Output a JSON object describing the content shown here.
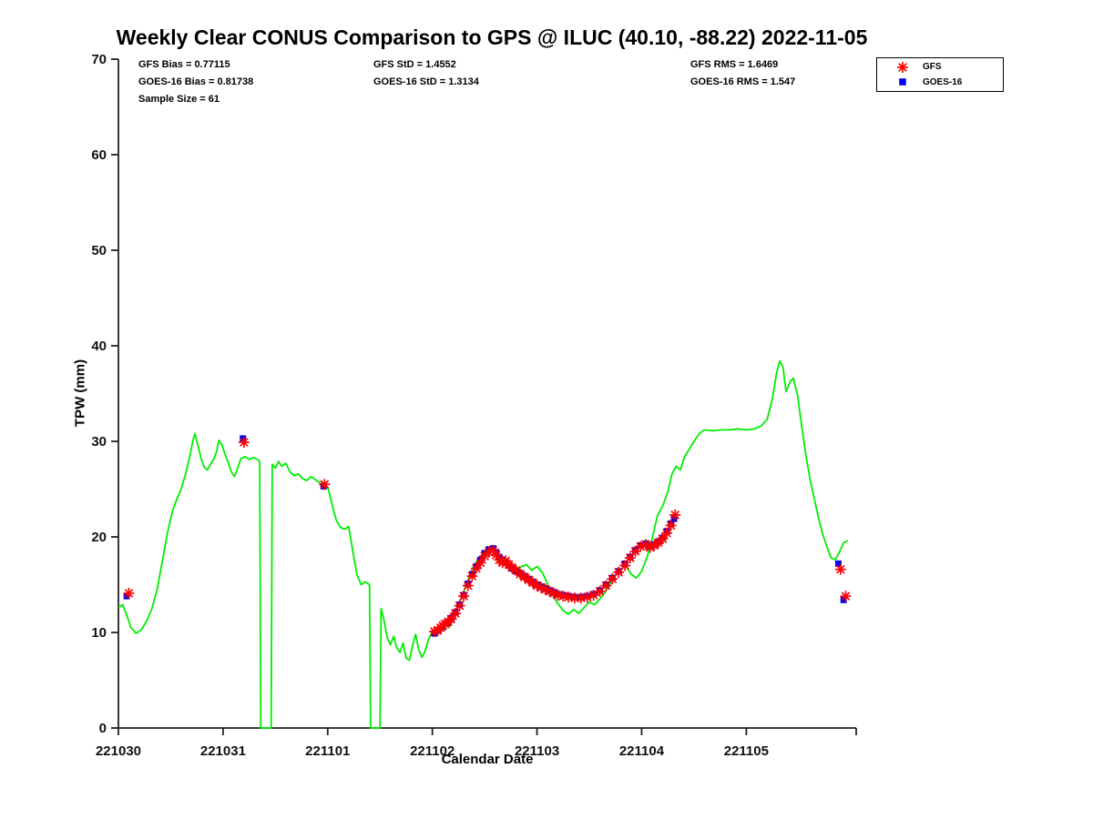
{
  "chart_data": {
    "type": "line",
    "title": "Weekly Clear CONUS Comparison to GPS @ ILUC (40.10, -88.22) 2022-11-05",
    "xlabel": "Calendar Date",
    "ylabel": "TPW (mm)",
    "xlim": [
      0,
      7.05
    ],
    "ylim": [
      0,
      70
    ],
    "grid": false,
    "x_axis_note": "x is days since first tick; tick labels are YYMMDD calendar dates",
    "x_ticks": [
      {
        "x": 0,
        "label": "221030"
      },
      {
        "x": 1,
        "label": "221031"
      },
      {
        "x": 2,
        "label": "221101"
      },
      {
        "x": 3,
        "label": "221102"
      },
      {
        "x": 4,
        "label": "221103"
      },
      {
        "x": 5,
        "label": "221104"
      },
      {
        "x": 6,
        "label": "221105"
      }
    ],
    "y_ticks": [
      0,
      10,
      20,
      30,
      40,
      50,
      60,
      70
    ],
    "annotations": {
      "gfs_bias": "GFS Bias = 0.77115",
      "goes16_bias": "GOES-16 Bias = 0.81738",
      "sample_size": "Sample Size = 61",
      "gfs_std": "GFS StD = 1.4552",
      "goes16_std": "GOES-16 StD = 1.3134",
      "gfs_rms": "GFS RMS = 1.6469",
      "goes16_rms": "GOES-16 RMS = 1.547"
    },
    "legend": {
      "position": "top-right",
      "items": [
        {
          "label": "GFS",
          "marker": "asterisk",
          "color": "#ff0000"
        },
        {
          "label": "GOES-16",
          "marker": "square",
          "color": "#0000ee"
        }
      ]
    },
    "series": [
      {
        "name": "GPS",
        "type": "line",
        "color": "#00ee00",
        "points": [
          [
            0,
            12.6
          ],
          [
            0.04,
            12.9
          ],
          [
            0.08,
            11.8
          ],
          [
            0.12,
            10.5
          ],
          [
            0.17,
            9.9
          ],
          [
            0.22,
            10.3
          ],
          [
            0.27,
            11.2
          ],
          [
            0.32,
            12.5
          ],
          [
            0.37,
            14.5
          ],
          [
            0.42,
            17.5
          ],
          [
            0.47,
            20.5
          ],
          [
            0.52,
            22.8
          ],
          [
            0.56,
            24
          ],
          [
            0.6,
            25
          ],
          [
            0.64,
            26.5
          ],
          [
            0.68,
            28.3
          ],
          [
            0.71,
            30
          ],
          [
            0.73,
            30.8
          ],
          [
            0.76,
            29.6
          ],
          [
            0.79,
            28.2
          ],
          [
            0.82,
            27.3
          ],
          [
            0.85,
            27
          ],
          [
            0.88,
            27.6
          ],
          [
            0.91,
            28.1
          ],
          [
            0.94,
            29
          ],
          [
            0.96,
            30.1
          ],
          [
            0.99,
            29.6
          ],
          [
            1.02,
            28.6
          ],
          [
            1.05,
            27.8
          ],
          [
            1.08,
            26.8
          ],
          [
            1.11,
            26.3
          ],
          [
            1.14,
            27.2
          ],
          [
            1.17,
            28.2
          ],
          [
            1.21,
            28.4
          ],
          [
            1.25,
            28.1
          ],
          [
            1.29,
            28.3
          ],
          [
            1.33,
            28.1
          ],
          [
            1.35,
            27.9
          ],
          [
            1.36,
            0
          ],
          [
            1.46,
            0
          ],
          [
            1.47,
            27.6
          ],
          [
            1.5,
            27.2
          ],
          [
            1.53,
            27.9
          ],
          [
            1.56,
            27.4
          ],
          [
            1.6,
            27.7
          ],
          [
            1.64,
            26.8
          ],
          [
            1.68,
            26.4
          ],
          [
            1.72,
            26.6
          ],
          [
            1.76,
            26.1
          ],
          [
            1.8,
            25.9
          ],
          [
            1.84,
            26.3
          ],
          [
            1.88,
            26
          ],
          [
            1.92,
            25.7
          ],
          [
            1.96,
            25.4
          ],
          [
            2,
            25.2
          ],
          [
            2.04,
            23.5
          ],
          [
            2.08,
            21.8
          ],
          [
            2.12,
            21
          ],
          [
            2.16,
            20.8
          ],
          [
            2.2,
            21.1
          ],
          [
            2.24,
            18.5
          ],
          [
            2.28,
            16
          ],
          [
            2.32,
            15
          ],
          [
            2.36,
            15.3
          ],
          [
            2.4,
            15
          ],
          [
            2.41,
            0
          ],
          [
            2.5,
            0
          ],
          [
            2.51,
            12.5
          ],
          [
            2.54,
            11.2
          ],
          [
            2.57,
            9.4
          ],
          [
            2.6,
            8.7
          ],
          [
            2.63,
            9.6
          ],
          [
            2.66,
            8.4
          ],
          [
            2.69,
            7.9
          ],
          [
            2.72,
            8.9
          ],
          [
            2.75,
            7.3
          ],
          [
            2.78,
            7.1
          ],
          [
            2.81,
            8.6
          ],
          [
            2.84,
            9.8
          ],
          [
            2.87,
            8.2
          ],
          [
            2.9,
            7.4
          ],
          [
            2.93,
            8
          ],
          [
            2.96,
            9.2
          ],
          [
            3,
            10.1
          ],
          [
            3.04,
            9.7
          ],
          [
            3.08,
            10.3
          ],
          [
            3.12,
            10.9
          ],
          [
            3.16,
            10.5
          ],
          [
            3.2,
            11.6
          ],
          [
            3.25,
            12.8
          ],
          [
            3.3,
            14.2
          ],
          [
            3.35,
            15.8
          ],
          [
            3.4,
            17
          ],
          [
            3.45,
            17.9
          ],
          [
            3.5,
            18.3
          ],
          [
            3.55,
            18.6
          ],
          [
            3.6,
            18.3
          ],
          [
            3.65,
            17.7
          ],
          [
            3.7,
            17.1
          ],
          [
            3.75,
            16.7
          ],
          [
            3.8,
            16.4
          ],
          [
            3.85,
            16.9
          ],
          [
            3.9,
            17.1
          ],
          [
            3.95,
            16.5
          ],
          [
            4,
            16.9
          ],
          [
            4.05,
            16.3
          ],
          [
            4.1,
            15.1
          ],
          [
            4.15,
            13.9
          ],
          [
            4.2,
            13
          ],
          [
            4.25,
            12.3
          ],
          [
            4.3,
            11.9
          ],
          [
            4.35,
            12.4
          ],
          [
            4.4,
            12
          ],
          [
            4.45,
            12.6
          ],
          [
            4.5,
            13.2
          ],
          [
            4.55,
            12.9
          ],
          [
            4.6,
            13.5
          ],
          [
            4.65,
            14.2
          ],
          [
            4.7,
            15.1
          ],
          [
            4.75,
            16
          ],
          [
            4.8,
            16.6
          ],
          [
            4.85,
            17
          ],
          [
            4.9,
            16.1
          ],
          [
            4.95,
            15.7
          ],
          [
            5,
            16.4
          ],
          [
            5.05,
            17.8
          ],
          [
            5.1,
            19.8
          ],
          [
            5.15,
            22.2
          ],
          [
            5.2,
            23.2
          ],
          [
            5.25,
            24.7
          ],
          [
            5.29,
            26.6
          ],
          [
            5.33,
            27.4
          ],
          [
            5.37,
            27
          ],
          [
            5.41,
            28.4
          ],
          [
            5.45,
            29.1
          ],
          [
            5.5,
            30
          ],
          [
            5.55,
            30.8
          ],
          [
            5.6,
            31.2
          ],
          [
            5.68,
            31.1
          ],
          [
            5.76,
            31.2
          ],
          [
            5.84,
            31.2
          ],
          [
            5.92,
            31.3
          ],
          [
            6,
            31.2
          ],
          [
            6.08,
            31.3
          ],
          [
            6.14,
            31.6
          ],
          [
            6.2,
            32.3
          ],
          [
            6.25,
            34.5
          ],
          [
            6.29,
            37.2
          ],
          [
            6.32,
            38.4
          ],
          [
            6.35,
            37.8
          ],
          [
            6.38,
            35.2
          ],
          [
            6.42,
            36.3
          ],
          [
            6.45,
            36.6
          ],
          [
            6.49,
            34.8
          ],
          [
            6.53,
            31.5
          ],
          [
            6.57,
            28.5
          ],
          [
            6.61,
            26
          ],
          [
            6.65,
            24
          ],
          [
            6.69,
            22
          ],
          [
            6.73,
            20.3
          ],
          [
            6.77,
            19
          ],
          [
            6.81,
            17.8
          ],
          [
            6.85,
            17.6
          ],
          [
            6.89,
            18.4
          ],
          [
            6.93,
            19.4
          ],
          [
            6.97,
            19.6
          ]
        ]
      },
      {
        "name": "GOES-16",
        "type": "scatter",
        "marker": "square",
        "color": "#0000ee",
        "points": [
          [
            0.08,
            13.8
          ],
          [
            1.19,
            30.3
          ],
          [
            1.96,
            25.3
          ],
          [
            3.02,
            9.9
          ],
          [
            3.06,
            10.2
          ],
          [
            3.1,
            10.6
          ],
          [
            3.14,
            11
          ],
          [
            3.18,
            11.5
          ],
          [
            3.22,
            12.1
          ],
          [
            3.26,
            12.9
          ],
          [
            3.3,
            13.9
          ],
          [
            3.34,
            15.1
          ],
          [
            3.38,
            16.1
          ],
          [
            3.42,
            16.9
          ],
          [
            3.46,
            17.6
          ],
          [
            3.5,
            18.3
          ],
          [
            3.54,
            18.7
          ],
          [
            3.58,
            18.8
          ],
          [
            3.61,
            18.4
          ],
          [
            3.64,
            17.9
          ],
          [
            3.67,
            17.6
          ],
          [
            3.7,
            17.3
          ],
          [
            3.73,
            17
          ],
          [
            3.76,
            16.7
          ],
          [
            3.8,
            16.4
          ],
          [
            3.84,
            16.2
          ],
          [
            3.88,
            15.9
          ],
          [
            3.92,
            15.6
          ],
          [
            3.96,
            15.3
          ],
          [
            4,
            15
          ],
          [
            4.04,
            14.8
          ],
          [
            4.08,
            14.6
          ],
          [
            4.12,
            14.4
          ],
          [
            4.16,
            14.2
          ],
          [
            4.2,
            14
          ],
          [
            4.25,
            13.9
          ],
          [
            4.3,
            13.8
          ],
          [
            4.36,
            13.7
          ],
          [
            4.42,
            13.7
          ],
          [
            4.48,
            13.8
          ],
          [
            4.54,
            14
          ],
          [
            4.6,
            14.4
          ],
          [
            4.66,
            15
          ],
          [
            4.72,
            15.7
          ],
          [
            4.78,
            16.4
          ],
          [
            4.84,
            17.2
          ],
          [
            4.89,
            17.9
          ],
          [
            4.94,
            18.6
          ],
          [
            4.99,
            19.1
          ],
          [
            5.04,
            19.3
          ],
          [
            5.08,
            19
          ],
          [
            5.12,
            19.2
          ],
          [
            5.16,
            19.5
          ],
          [
            5.2,
            19.9
          ],
          [
            5.24,
            20.6
          ],
          [
            5.28,
            21.4
          ],
          [
            5.31,
            21.9
          ],
          [
            6.88,
            17.2
          ],
          [
            6.93,
            13.4
          ]
        ]
      },
      {
        "name": "GFS",
        "type": "scatter",
        "marker": "asterisk",
        "color": "#ff0000",
        "points": [
          [
            0.1,
            14.1
          ],
          [
            1.2,
            29.9
          ],
          [
            1.97,
            25.5
          ],
          [
            3.02,
            10.1
          ],
          [
            3.05,
            10.2
          ],
          [
            3.08,
            10.5
          ],
          [
            3.1,
            10.7
          ],
          [
            3.12,
            10.9
          ],
          [
            3.15,
            11.1
          ],
          [
            3.18,
            11.4
          ],
          [
            3.22,
            12
          ],
          [
            3.26,
            12.8
          ],
          [
            3.3,
            13.8
          ],
          [
            3.34,
            14.9
          ],
          [
            3.38,
            15.9
          ],
          [
            3.42,
            16.7
          ],
          [
            3.46,
            17.3
          ],
          [
            3.5,
            18
          ],
          [
            3.54,
            18.4
          ],
          [
            3.58,
            18.6
          ],
          [
            3.61,
            18.1
          ],
          [
            3.64,
            17.6
          ],
          [
            3.67,
            17.3
          ],
          [
            3.7,
            17.5
          ],
          [
            3.73,
            17.1
          ],
          [
            3.76,
            16.8
          ],
          [
            3.8,
            16.5
          ],
          [
            3.84,
            16.1
          ],
          [
            3.88,
            15.8
          ],
          [
            3.92,
            15.5
          ],
          [
            3.96,
            15.2
          ],
          [
            4,
            14.9
          ],
          [
            4.04,
            14.7
          ],
          [
            4.08,
            14.5
          ],
          [
            4.12,
            14.3
          ],
          [
            4.16,
            14.1
          ],
          [
            4.2,
            13.9
          ],
          [
            4.25,
            13.8
          ],
          [
            4.3,
            13.7
          ],
          [
            4.36,
            13.6
          ],
          [
            4.42,
            13.6
          ],
          [
            4.48,
            13.7
          ],
          [
            4.54,
            13.9
          ],
          [
            4.6,
            14.3
          ],
          [
            4.66,
            14.9
          ],
          [
            4.72,
            15.6
          ],
          [
            4.78,
            16.3
          ],
          [
            4.84,
            17
          ],
          [
            4.89,
            17.8
          ],
          [
            4.94,
            18.5
          ],
          [
            4.99,
            19
          ],
          [
            5.04,
            19.2
          ],
          [
            5.08,
            18.9
          ],
          [
            5.12,
            19.1
          ],
          [
            5.16,
            19.4
          ],
          [
            5.2,
            19.8
          ],
          [
            5.24,
            20.4
          ],
          [
            5.28,
            21.2
          ],
          [
            5.32,
            22.3
          ],
          [
            6.9,
            16.6
          ],
          [
            6.95,
            13.8
          ]
        ]
      }
    ]
  }
}
